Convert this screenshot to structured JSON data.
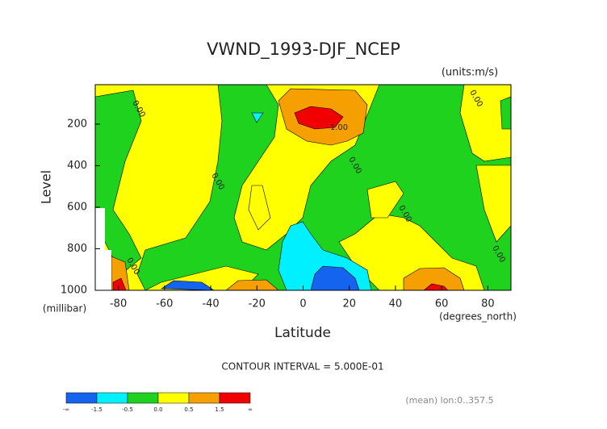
{
  "chart_data": {
    "type": "contour",
    "title": "VWND_1993-DJF_NCEP",
    "units": "(units:m/s)",
    "y_label": "Level",
    "y_unit": "(millibar)",
    "x_label": "Latitude",
    "x_unit": "(degrees_north)",
    "xlim": [
      -90,
      90
    ],
    "xticks": [
      -80,
      -60,
      -40,
      -20,
      0,
      20,
      40,
      60,
      80
    ],
    "ylim": [
      1000,
      10
    ],
    "yticks": [
      200,
      400,
      600,
      800,
      1000
    ],
    "contour_interval": "CONTOUR INTERVAL = 5.000E-01",
    "footer": "(mean) lon:0..357.5",
    "contour_labels": [
      "0.00",
      "0.00",
      "0.00",
      "0.00",
      "0.00",
      "0.00",
      "0.00",
      "1.00"
    ],
    "colorbar": {
      "labels": [
        "-∞",
        "-1.5",
        "-0.5",
        "0.0",
        "0.5",
        "1.5",
        "∞"
      ],
      "colors": [
        "#1464f0",
        "#00f0ff",
        "#1ed21e",
        "#ffff00",
        "#f5a000",
        "#f00000"
      ]
    }
  }
}
